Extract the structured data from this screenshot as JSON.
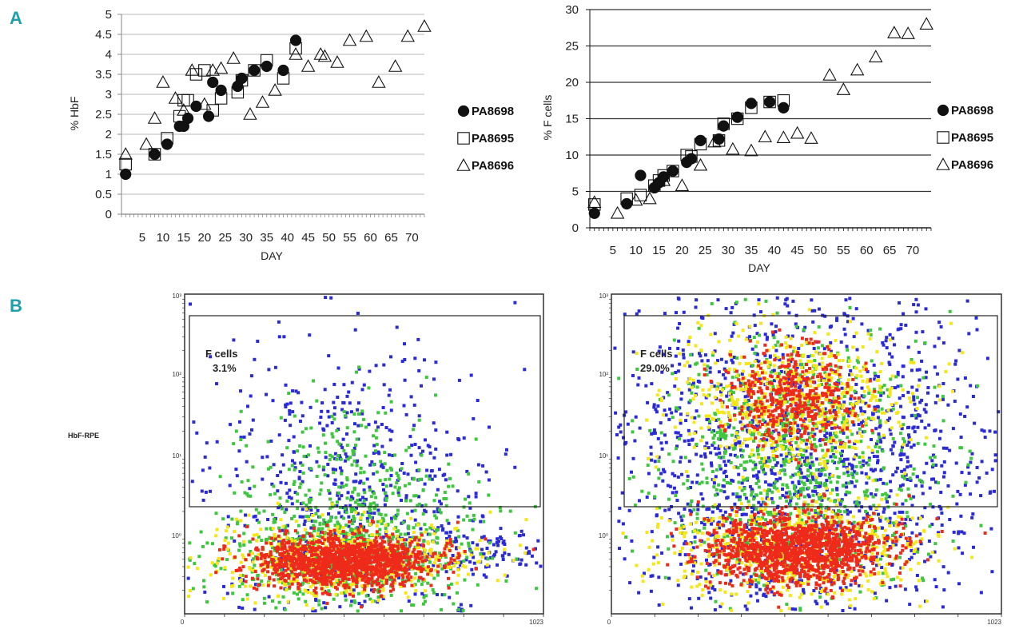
{
  "panel_labels": [
    "A",
    "B"
  ],
  "colors": {
    "panel_label": "#1ea0a8",
    "marker_stroke": "#111111",
    "grid": "#b8b8b8",
    "dens_low": "#2a2ad6",
    "dens_mid": "#3ec63e",
    "dens_high": "#f5e618",
    "dens_peak": "#ee2a1a"
  },
  "chart_data": [
    {
      "id": "hbf",
      "type": "scatter",
      "title": "",
      "xlabel": "DAY",
      "ylabel": "% HbF",
      "xlim": [
        0,
        73
      ],
      "ylim": [
        0,
        5
      ],
      "xticks": [
        5,
        10,
        15,
        20,
        25,
        30,
        35,
        40,
        45,
        50,
        55,
        60,
        65,
        70
      ],
      "yticks": [
        0,
        0.5,
        1,
        1.5,
        2,
        2.5,
        3,
        3.5,
        4,
        4.5,
        5
      ],
      "ytick_labels": [
        "0",
        "0.5",
        "1",
        "1.5",
        "2",
        "2.5",
        "3",
        "3.5",
        "4",
        "4.5",
        "5"
      ],
      "grid": true,
      "legend_position": "right",
      "series": [
        {
          "name": "PA8698",
          "marker": "circle-filled",
          "points": [
            [
              1,
              1.0
            ],
            [
              8,
              1.5
            ],
            [
              11,
              1.75
            ],
            [
              14,
              2.2
            ],
            [
              15,
              2.2
            ],
            [
              16,
              2.4
            ],
            [
              18,
              2.7
            ],
            [
              21,
              2.45
            ],
            [
              22,
              3.3
            ],
            [
              24,
              3.1
            ],
            [
              28,
              3.2
            ],
            [
              29,
              3.4
            ],
            [
              32,
              3.6
            ],
            [
              35,
              3.7
            ],
            [
              39,
              3.6
            ],
            [
              42,
              4.35
            ]
          ]
        },
        {
          "name": "PA8695",
          "marker": "square-open",
          "points": [
            [
              1,
              1.25
            ],
            [
              8,
              1.5
            ],
            [
              11,
              1.9
            ],
            [
              14,
              2.45
            ],
            [
              15,
              2.85
            ],
            [
              16,
              2.85
            ],
            [
              18,
              3.5
            ],
            [
              20,
              3.6
            ],
            [
              22,
              2.6
            ],
            [
              24,
              2.9
            ],
            [
              28,
              3.05
            ],
            [
              29,
              3.35
            ],
            [
              32,
              3.6
            ],
            [
              35,
              3.85
            ],
            [
              39,
              3.4
            ],
            [
              42,
              4.15
            ]
          ]
        },
        {
          "name": "PA8696",
          "marker": "triangle-open",
          "points": [
            [
              1,
              1.5
            ],
            [
              6,
              1.75
            ],
            [
              8,
              2.4
            ],
            [
              10,
              3.3
            ],
            [
              13,
              2.9
            ],
            [
              15,
              2.6
            ],
            [
              17,
              3.6
            ],
            [
              20,
              2.75
            ],
            [
              22,
              3.6
            ],
            [
              24,
              3.65
            ],
            [
              27,
              3.9
            ],
            [
              31,
              2.5
            ],
            [
              34,
              2.8
            ],
            [
              37,
              3.1
            ],
            [
              42,
              4.0
            ],
            [
              45,
              3.7
            ],
            [
              48,
              4.0
            ],
            [
              49,
              3.95
            ],
            [
              52,
              3.8
            ],
            [
              55,
              4.35
            ],
            [
              59,
              4.45
            ],
            [
              62,
              3.3
            ],
            [
              66,
              3.7
            ],
            [
              69,
              4.45
            ],
            [
              73,
              4.7
            ]
          ]
        }
      ]
    },
    {
      "id": "fcells",
      "type": "scatter",
      "title": "",
      "xlabel": "DAY",
      "ylabel": "% F cells",
      "xlim": [
        0,
        74
      ],
      "ylim": [
        0,
        30
      ],
      "xticks": [
        5,
        10,
        15,
        20,
        25,
        30,
        35,
        40,
        45,
        50,
        55,
        60,
        65,
        70
      ],
      "yticks": [
        0,
        5,
        10,
        15,
        20,
        25,
        30
      ],
      "ytick_labels": [
        "0",
        "5",
        "10",
        "15",
        "20",
        "25",
        "30"
      ],
      "grid": true,
      "legend_position": "right",
      "series": [
        {
          "name": "PA8698",
          "marker": "circle-filled",
          "points": [
            [
              1,
              2.0
            ],
            [
              8,
              3.3
            ],
            [
              11,
              7.2
            ],
            [
              14,
              5.5
            ],
            [
              15,
              6.2
            ],
            [
              16,
              7.0
            ],
            [
              18,
              7.8
            ],
            [
              21,
              9.0
            ],
            [
              22,
              9.5
            ],
            [
              24,
              12.0
            ],
            [
              28,
              12.2
            ],
            [
              29,
              14.0
            ],
            [
              32,
              15.2
            ],
            [
              35,
              17.1
            ],
            [
              39,
              17.3
            ],
            [
              42,
              16.5
            ]
          ]
        },
        {
          "name": "PA8695",
          "marker": "square-open",
          "points": [
            [
              1,
              3.2
            ],
            [
              8,
              4.0
            ],
            [
              11,
              4.5
            ],
            [
              14,
              5.8
            ],
            [
              15,
              6.5
            ],
            [
              16,
              7.2
            ],
            [
              18,
              7.8
            ],
            [
              21,
              10.0
            ],
            [
              22,
              9.8
            ],
            [
              24,
              11.5
            ],
            [
              28,
              12.0
            ],
            [
              29,
              14.3
            ],
            [
              32,
              15.0
            ],
            [
              35,
              16.5
            ],
            [
              39,
              17.3
            ],
            [
              42,
              17.5
            ]
          ]
        },
        {
          "name": "PA8696",
          "marker": "triangle-open",
          "points": [
            [
              1,
              3.5
            ],
            [
              6,
              2.0
            ],
            [
              10,
              3.8
            ],
            [
              13,
              4.0
            ],
            [
              16,
              6.5
            ],
            [
              20,
              5.8
            ],
            [
              24,
              8.6
            ],
            [
              27,
              11.8
            ],
            [
              31,
              10.8
            ],
            [
              35,
              10.6
            ],
            [
              38,
              12.5
            ],
            [
              42,
              12.4
            ],
            [
              45,
              13.0
            ],
            [
              48,
              12.3
            ],
            [
              52,
              21.0
            ],
            [
              55,
              19.0
            ],
            [
              58,
              21.7
            ],
            [
              62,
              23.5
            ],
            [
              66,
              26.8
            ],
            [
              69,
              26.7
            ],
            [
              73,
              28.0
            ]
          ]
        }
      ]
    },
    {
      "id": "flow-left",
      "type": "scatter",
      "title": "",
      "ylabel": "HbF-RPE",
      "yscale": "log",
      "ylim": [
        0.1,
        1000
      ],
      "ytick_labels": [
        "10³",
        "10²",
        "10¹",
        "10⁰"
      ],
      "xlim": [
        0,
        1023
      ],
      "xtick_labels": [
        "0",
        "1023"
      ],
      "gate_label": "F cells",
      "gate_value": "3.1%"
    },
    {
      "id": "flow-right",
      "type": "scatter",
      "title": "",
      "yscale": "log",
      "ylim": [
        0.1,
        1000
      ],
      "ytick_labels": [
        "10³",
        "10²",
        "10¹",
        "10⁰"
      ],
      "xlim": [
        0,
        1023
      ],
      "xtick_labels": [
        "0",
        "1023"
      ],
      "gate_label": "F cells",
      "gate_value": "29.0%"
    }
  ]
}
